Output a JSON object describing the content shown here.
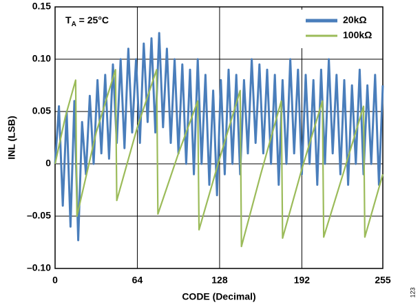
{
  "chart_data": {
    "type": "line",
    "xlabel": "CODE (Decimal)",
    "ylabel": "INL (LSB)",
    "annotation": {
      "main": "T",
      "sub": "A",
      "rest": " = 25°C"
    },
    "side_label": "123",
    "xlim": [
      0,
      255
    ],
    "ylim": [
      -0.1,
      0.15
    ],
    "xticks": [
      0,
      64,
      128,
      192,
      255
    ],
    "yticks": [
      0.15,
      {
        "value": 0.1,
        "label": "0.10"
      },
      0.05,
      0,
      {
        "value": -0.05,
        "label": "–0.05"
      },
      {
        "value": -0.1,
        "label": "–0.10"
      }
    ],
    "grid": true,
    "legend": "upper right",
    "series": [
      {
        "name": "20kΩ",
        "color": "#4a7ebb",
        "x": [
          0,
          3,
          6,
          9,
          12,
          15,
          18,
          21,
          24,
          27,
          30,
          33,
          36,
          39,
          42,
          45,
          48,
          51,
          54,
          57,
          60,
          63,
          66,
          69,
          72,
          75,
          78,
          81,
          84,
          87,
          90,
          93,
          96,
          99,
          102,
          105,
          108,
          111,
          114,
          117,
          120,
          123,
          126,
          129,
          132,
          135,
          138,
          141,
          144,
          147,
          150,
          153,
          156,
          159,
          162,
          165,
          168,
          171,
          174,
          177,
          180,
          183,
          186,
          189,
          192,
          195,
          198,
          201,
          204,
          207,
          210,
          213,
          216,
          219,
          222,
          225,
          228,
          231,
          234,
          237,
          240,
          243,
          246,
          249,
          252,
          255
        ],
        "values": [
          0.0,
          0.055,
          -0.04,
          0.05,
          -0.06,
          0.06,
          -0.073,
          0.04,
          -0.01,
          0.065,
          0.0,
          0.08,
          0.01,
          0.085,
          0.005,
          0.095,
          0.02,
          0.1,
          0.015,
          0.11,
          0.03,
          0.1,
          0.02,
          0.115,
          0.04,
          0.12,
          0.03,
          0.125,
          0.035,
          0.11,
          0.02,
          0.1,
          0.01,
          0.095,
          0.0,
          0.09,
          -0.01,
          0.1,
          0.0,
          0.085,
          -0.02,
          0.07,
          -0.03,
          0.08,
          -0.01,
          0.09,
          0.0,
          0.085,
          -0.01,
          0.08,
          0.01,
          0.1,
          0.02,
          0.095,
          0.01,
          0.09,
          0.0,
          0.085,
          -0.02,
          0.08,
          0.0,
          0.1,
          0.01,
          0.09,
          -0.01,
          0.085,
          0.0,
          0.08,
          -0.02,
          0.09,
          0.0,
          0.1,
          0.01,
          0.085,
          -0.01,
          0.08,
          -0.02,
          0.075,
          0.0,
          0.09,
          -0.01,
          0.075,
          0.0,
          0.085,
          -0.02,
          0.075
        ]
      },
      {
        "name": "100kΩ",
        "color": "#9bbb59",
        "x": [
          0,
          8,
          16,
          17,
          32,
          47,
          48,
          64,
          79,
          80,
          96,
          111,
          112,
          128,
          144,
          145,
          160,
          176,
          177,
          192,
          208,
          209,
          224,
          240,
          241,
          248,
          255
        ],
        "values": [
          0,
          0.045,
          0.08,
          -0.05,
          0.03,
          0.09,
          -0.035,
          0.035,
          0.09,
          -0.048,
          0.01,
          0.06,
          -0.063,
          0.005,
          0.07,
          -0.079,
          -0.01,
          0.06,
          -0.071,
          -0.005,
          0.06,
          -0.07,
          -0.01,
          0.055,
          -0.07,
          -0.04,
          -0.01
        ]
      }
    ]
  }
}
